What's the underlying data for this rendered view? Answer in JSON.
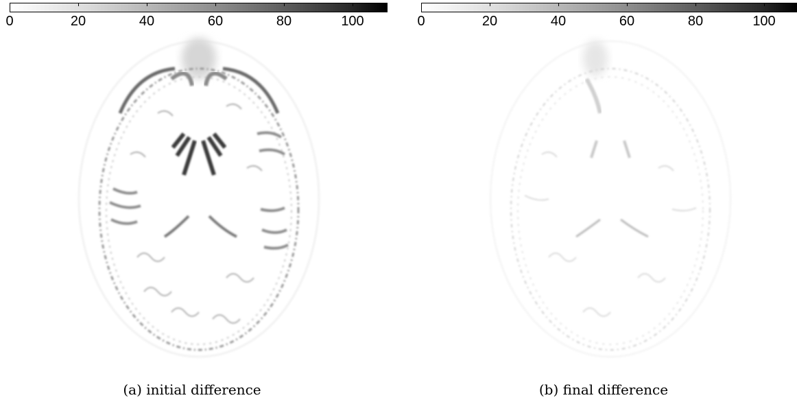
{
  "colorbar": {
    "ticks": [
      "0",
      "20",
      "40",
      "60",
      "80",
      "100"
    ],
    "tick_values": [
      0,
      20,
      40,
      60,
      80,
      100
    ],
    "range": [
      0,
      110
    ],
    "colormap": "white-to-black"
  },
  "panels": [
    {
      "caption": "(a) initial difference",
      "intensity": "high"
    },
    {
      "caption": "(b) final difference",
      "intensity": "low"
    }
  ]
}
